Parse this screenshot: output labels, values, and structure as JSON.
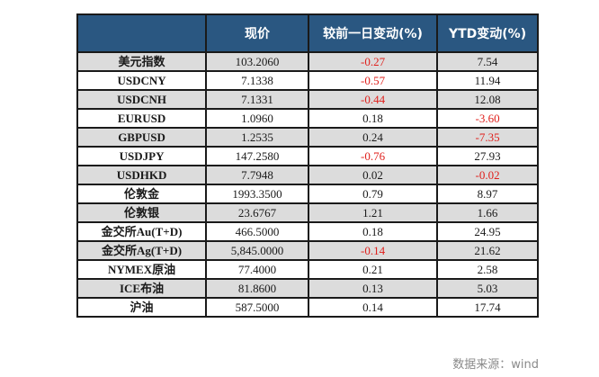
{
  "table": {
    "headers": [
      "",
      "现价",
      "较前一日变动(%)",
      "YTD变动(%)"
    ],
    "rows": [
      {
        "name": "美元指数",
        "price": "103.2060",
        "day_change": "-0.27",
        "ytd_change": "7.54",
        "day_neg": true,
        "ytd_neg": false
      },
      {
        "name": "USDCNY",
        "price": "7.1338",
        "day_change": "-0.57",
        "ytd_change": "11.94",
        "day_neg": true,
        "ytd_neg": false
      },
      {
        "name": "USDCNH",
        "price": "7.1331",
        "day_change": "-0.44",
        "ytd_change": "12.08",
        "day_neg": true,
        "ytd_neg": false
      },
      {
        "name": "EURUSD",
        "price": "1.0960",
        "day_change": "0.18",
        "ytd_change": "-3.60",
        "day_neg": false,
        "ytd_neg": true
      },
      {
        "name": "GBPUSD",
        "price": "1.2535",
        "day_change": "0.24",
        "ytd_change": "-7.35",
        "day_neg": false,
        "ytd_neg": true
      },
      {
        "name": "USDJPY",
        "price": "147.2580",
        "day_change": "-0.76",
        "ytd_change": "27.93",
        "day_neg": true,
        "ytd_neg": false
      },
      {
        "name": "USDHKD",
        "price": "7.7948",
        "day_change": "0.02",
        "ytd_change": "-0.02",
        "day_neg": false,
        "ytd_neg": true
      },
      {
        "name": "伦敦金",
        "price": "1993.3500",
        "day_change": "0.79",
        "ytd_change": "8.97",
        "day_neg": false,
        "ytd_neg": false
      },
      {
        "name": "伦敦银",
        "price": "23.6767",
        "day_change": "1.21",
        "ytd_change": "1.66",
        "day_neg": false,
        "ytd_neg": false
      },
      {
        "name": "金交所Au(T+D)",
        "price": "466.5000",
        "day_change": "0.18",
        "ytd_change": "24.95",
        "day_neg": false,
        "ytd_neg": false
      },
      {
        "name": "金交所Ag(T+D)",
        "price": "5,845.0000",
        "day_change": "-0.14",
        "ytd_change": "21.62",
        "day_neg": true,
        "ytd_neg": false
      },
      {
        "name": "NYMEX原油",
        "price": "77.4000",
        "day_change": "0.21",
        "ytd_change": "2.58",
        "day_neg": false,
        "ytd_neg": false
      },
      {
        "name": "ICE布油",
        "price": "81.8600",
        "day_change": "0.13",
        "ytd_change": "5.03",
        "day_neg": false,
        "ytd_neg": false
      },
      {
        "name": "沪油",
        "price": "587.5000",
        "day_change": "0.14",
        "ytd_change": "17.74",
        "day_neg": false,
        "ytd_neg": false
      }
    ]
  },
  "colors": {
    "header_bg": "#2a5781",
    "header_text": "#ffffff",
    "shade_row": "#dcdcdc",
    "negative": "#e0201c",
    "source_text": "#8a8a8a"
  },
  "source": "数据来源：wind"
}
